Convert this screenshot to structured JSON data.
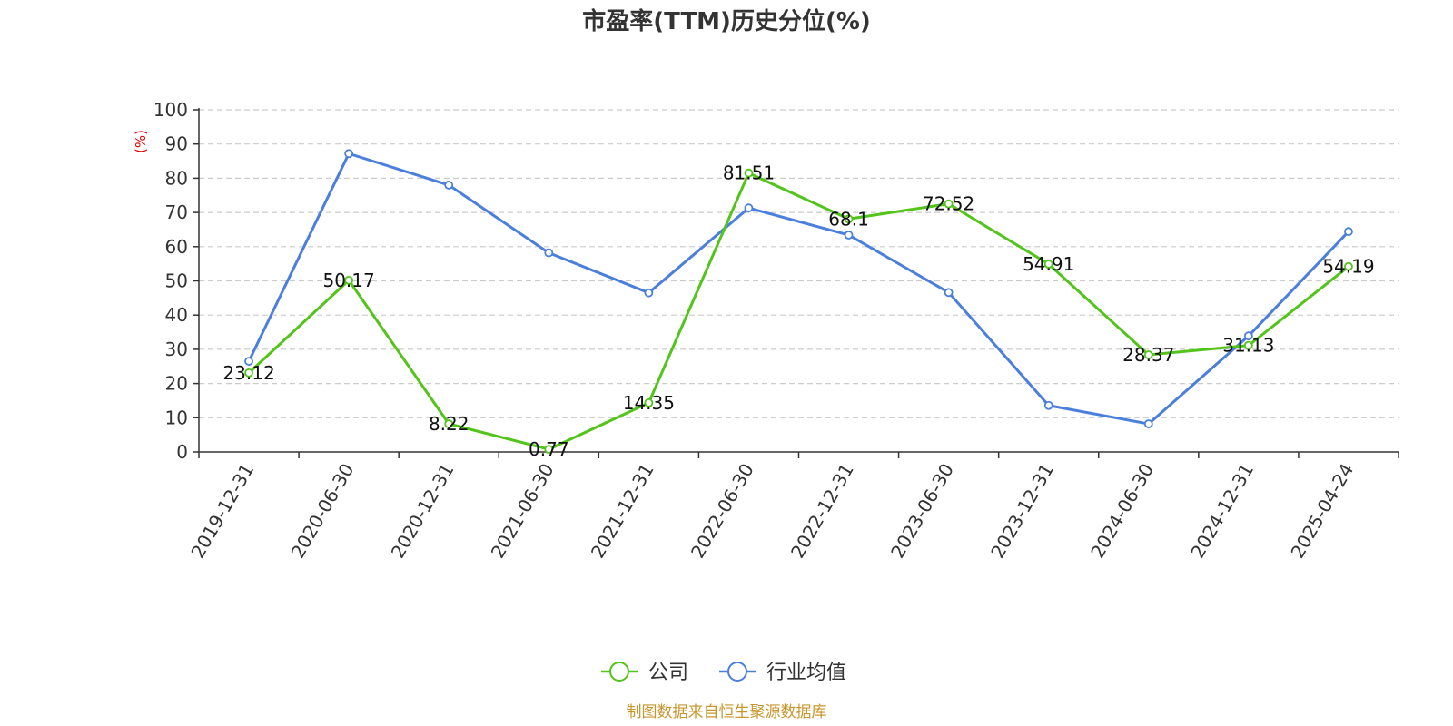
{
  "chart_data": {
    "type": "line",
    "title": "市盈率(TTM)历史分位(%)",
    "ylabel": "(%)",
    "ylim": [
      0,
      100
    ],
    "yticks": [
      0,
      10,
      20,
      30,
      40,
      50,
      60,
      70,
      80,
      90,
      100
    ],
    "categories": [
      "2019-12-31",
      "2020-06-30",
      "2020-12-31",
      "2021-06-30",
      "2021-12-31",
      "2022-06-30",
      "2022-12-31",
      "2023-06-30",
      "2023-12-31",
      "2024-06-30",
      "2024-12-31",
      "2025-04-24"
    ],
    "grid": true,
    "legend": "bottom-center",
    "series": [
      {
        "name": "公司",
        "color": "#52c41a",
        "values": [
          23.12,
          50.17,
          8.22,
          0.77,
          14.35,
          81.51,
          68.1,
          72.52,
          54.91,
          28.37,
          31.13,
          54.19
        ],
        "labels": [
          "23.12",
          "50.17",
          "8.22",
          "0.77",
          "14.35",
          "81.51",
          "68.1",
          "72.52",
          "54.91",
          "28.37",
          "31.13",
          "54.19"
        ]
      },
      {
        "name": "行业均值",
        "color": "#4a7fdd",
        "values": [
          26.5,
          87.2,
          78.0,
          58.2,
          46.5,
          71.3,
          63.4,
          46.6,
          13.6,
          8.2,
          33.9,
          64.4
        ]
      }
    ],
    "source": "制图数据来自恒生聚源数据库"
  }
}
